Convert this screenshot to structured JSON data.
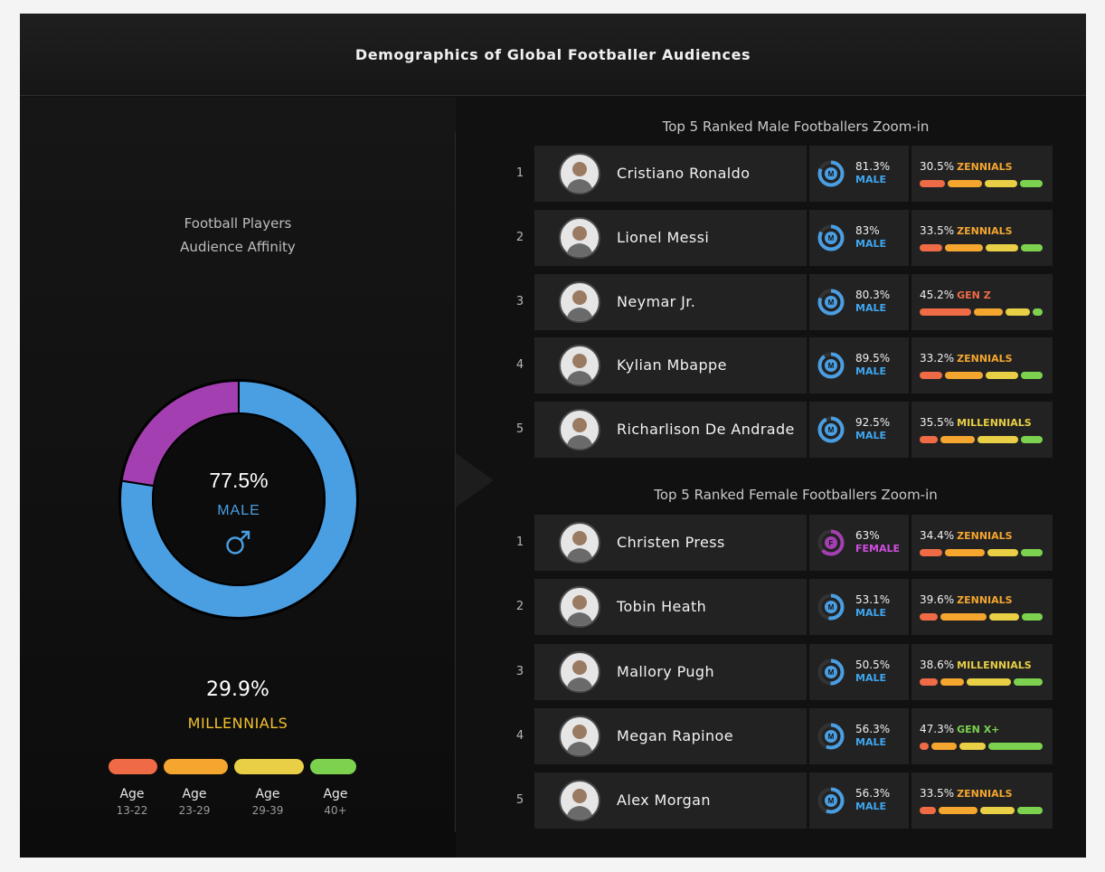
{
  "title": "Demographics of Global Footballer Audiences",
  "colors": {
    "male": "#4a9ee2",
    "female": "#a33fb0",
    "age": [
      "#ee6b46",
      "#f4a62f",
      "#e8cf45",
      "#7cd24f"
    ],
    "genz": "#ee6b46",
    "zennials": "#f4a62f",
    "millennials": "#e8cf45",
    "genx": "#7cd24f"
  },
  "left": {
    "subtitle_line1": "Football Players",
    "subtitle_line2": "Audience Affinity",
    "center_pct": "77.5%",
    "center_label": "MALE",
    "center_icon": "male-symbol-icon",
    "gen_pct": "29.9%",
    "gen_label": "MILLENNIALS",
    "age_groups": [
      {
        "label": "Age",
        "range": "13-22"
      },
      {
        "label": "Age",
        "range": "23-29"
      },
      {
        "label": "Age",
        "range": "29-39"
      },
      {
        "label": "Age",
        "range": "40+"
      }
    ]
  },
  "chart_data": {
    "type": "pie",
    "variant": "donut",
    "slices": [
      {
        "label": "MALE",
        "value": 77.5,
        "color": "#4a9ee2"
      },
      {
        "label": "FEMALE",
        "value": 22.5,
        "color": "#a33fb0"
      }
    ]
  },
  "sections": {
    "male_title": "Top 5 Ranked Male Footballers Zoom-in",
    "female_title": "Top 5 Ranked Female Footballers Zoom-in"
  },
  "male_players": [
    {
      "rank": "1",
      "name": "Cristiano Ronaldo",
      "g_icon": "M",
      "g_pct": "81.3%",
      "g_label": "MALE",
      "g_value": 81.3,
      "age_pct": "30.5%",
      "age_label": "ZENNIALS",
      "bars": [
        0.22,
        0.3,
        0.28,
        0.2
      ]
    },
    {
      "rank": "2",
      "name": "Lionel Messi",
      "g_icon": "M",
      "g_pct": "83%",
      "g_label": "MALE",
      "g_value": 83,
      "age_pct": "33.5%",
      "age_label": "ZENNIALS",
      "bars": [
        0.2,
        0.33,
        0.28,
        0.19
      ]
    },
    {
      "rank": "3",
      "name": "Neymar Jr.",
      "g_icon": "M",
      "g_pct": "80.3%",
      "g_label": "MALE",
      "g_value": 80.3,
      "age_pct": "45.2%",
      "age_label": "GEN Z",
      "bars": [
        0.45,
        0.25,
        0.21,
        0.09
      ]
    },
    {
      "rank": "4",
      "name": "Kylian Mbappe",
      "g_icon": "M",
      "g_pct": "89.5%",
      "g_label": "MALE",
      "g_value": 89.5,
      "age_pct": "33.2%",
      "age_label": "ZENNIALS",
      "bars": [
        0.2,
        0.33,
        0.28,
        0.19
      ]
    },
    {
      "rank": "5",
      "name": "Richarlison De Andrade",
      "g_icon": "M",
      "g_pct": "92.5%",
      "g_label": "MALE",
      "g_value": 92.5,
      "age_pct": "35.5%",
      "age_label": "MILLENNIALS",
      "bars": [
        0.16,
        0.3,
        0.35,
        0.19
      ]
    }
  ],
  "female_players": [
    {
      "rank": "1",
      "name": "Christen Press",
      "g_icon": "F",
      "g_pct": "63%",
      "g_label": "FEMALE",
      "g_value": 63,
      "age_pct": "34.4%",
      "age_label": "ZENNIALS",
      "bars": [
        0.2,
        0.34,
        0.27,
        0.19
      ]
    },
    {
      "rank": "2",
      "name": "Tobin Heath",
      "g_icon": "M",
      "g_pct": "53.1%",
      "g_label": "MALE",
      "g_value": 53.1,
      "age_pct": "39.6%",
      "age_label": "ZENNIALS",
      "bars": [
        0.16,
        0.4,
        0.26,
        0.18
      ]
    },
    {
      "rank": "3",
      "name": "Mallory Pugh",
      "g_icon": "M",
      "g_pct": "50.5%",
      "g_label": "MALE",
      "g_value": 50.5,
      "age_pct": "38.6%",
      "age_label": "MILLENNIALS",
      "bars": [
        0.16,
        0.2,
        0.39,
        0.25
      ]
    },
    {
      "rank": "4",
      "name": "Megan Rapinoe",
      "g_icon": "M",
      "g_pct": "56.3%",
      "g_label": "MALE",
      "g_value": 56.3,
      "age_pct": "47.3%",
      "age_label": "GEN X+",
      "bars": [
        0.08,
        0.22,
        0.23,
        0.47
      ]
    },
    {
      "rank": "5",
      "name": "Alex Morgan",
      "g_icon": "M",
      "g_pct": "56.3%",
      "g_label": "MALE",
      "g_value": 56.3,
      "age_pct": "33.5%",
      "age_label": "ZENNIALS",
      "bars": [
        0.14,
        0.34,
        0.3,
        0.22
      ]
    }
  ]
}
